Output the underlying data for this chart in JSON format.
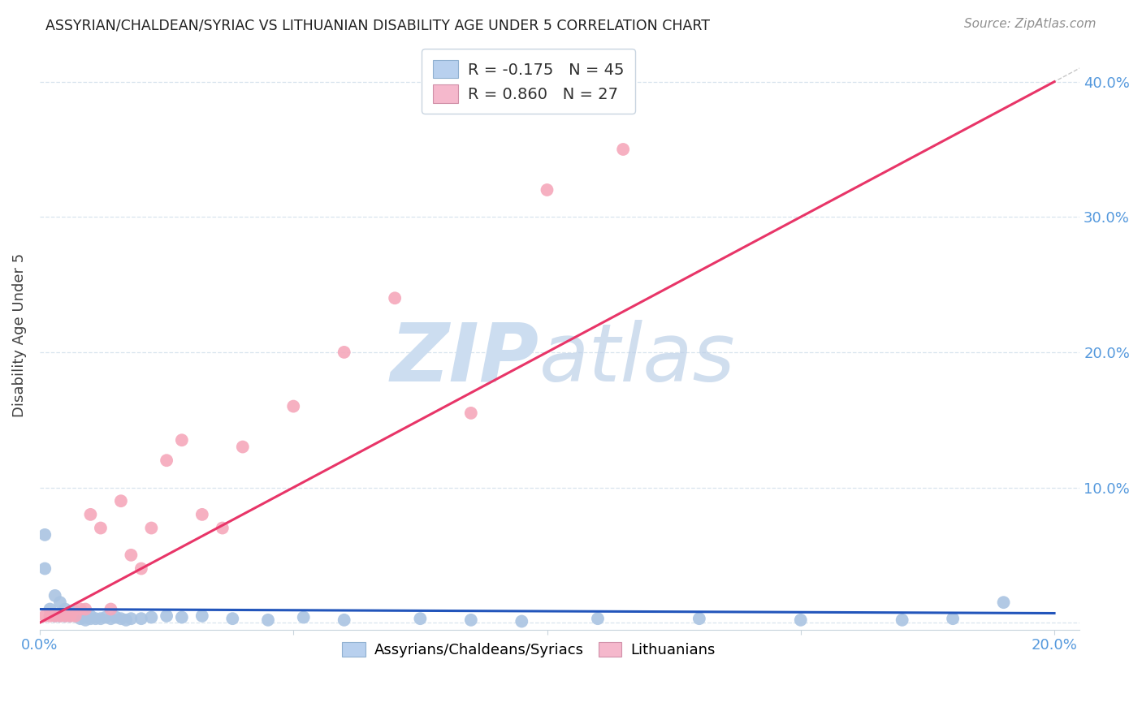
{
  "title": "ASSYRIAN/CHALDEAN/SYRIAC VS LITHUANIAN DISABILITY AGE UNDER 5 CORRELATION CHART",
  "source": "Source: ZipAtlas.com",
  "ylabel": "Disability Age Under 5",
  "xlim": [
    0.0,
    0.205
  ],
  "ylim": [
    -0.005,
    0.43
  ],
  "yticks": [
    0.0,
    0.1,
    0.2,
    0.3,
    0.4
  ],
  "xticks": [
    0.0,
    0.05,
    0.1,
    0.15,
    0.2
  ],
  "background_color": "#ffffff",
  "blue_scatter_color": "#aac4e2",
  "pink_scatter_color": "#f5a8bb",
  "blue_line_color": "#2255bb",
  "pink_line_color": "#e83568",
  "diagonal_color": "#c8c8c8",
  "axis_label_color": "#5599dd",
  "legend_r1": "-0.175",
  "legend_n1": "45",
  "legend_r2": "0.860",
  "legend_n2": "27",
  "blue_patch_color": "#b8d0ee",
  "pink_patch_color": "#f5b8cc",
  "assyrian_x": [
    0.001,
    0.001,
    0.002,
    0.003,
    0.003,
    0.004,
    0.004,
    0.005,
    0.005,
    0.006,
    0.006,
    0.007,
    0.007,
    0.008,
    0.008,
    0.009,
    0.009,
    0.01,
    0.01,
    0.011,
    0.012,
    0.013,
    0.014,
    0.015,
    0.016,
    0.017,
    0.018,
    0.02,
    0.022,
    0.025,
    0.028,
    0.032,
    0.038,
    0.045,
    0.052,
    0.06,
    0.075,
    0.085,
    0.095,
    0.11,
    0.13,
    0.15,
    0.17,
    0.18,
    0.19
  ],
  "assyrian_y": [
    0.04,
    0.065,
    0.01,
    0.005,
    0.02,
    0.005,
    0.015,
    0.005,
    0.01,
    0.005,
    0.008,
    0.005,
    0.008,
    0.003,
    0.006,
    0.002,
    0.004,
    0.003,
    0.005,
    0.003,
    0.003,
    0.004,
    0.003,
    0.004,
    0.003,
    0.002,
    0.003,
    0.003,
    0.004,
    0.005,
    0.004,
    0.005,
    0.003,
    0.002,
    0.004,
    0.002,
    0.003,
    0.002,
    0.001,
    0.003,
    0.003,
    0.002,
    0.002,
    0.003,
    0.015
  ],
  "lithuanian_x": [
    0.001,
    0.002,
    0.003,
    0.004,
    0.005,
    0.006,
    0.007,
    0.008,
    0.009,
    0.01,
    0.012,
    0.014,
    0.016,
    0.018,
    0.02,
    0.022,
    0.025,
    0.028,
    0.032,
    0.036,
    0.04,
    0.05,
    0.06,
    0.07,
    0.085,
    0.1,
    0.115
  ],
  "lithuanian_y": [
    0.005,
    0.005,
    0.005,
    0.005,
    0.005,
    0.005,
    0.005,
    0.01,
    0.01,
    0.08,
    0.07,
    0.01,
    0.09,
    0.05,
    0.04,
    0.07,
    0.12,
    0.135,
    0.08,
    0.07,
    0.13,
    0.16,
    0.2,
    0.24,
    0.155,
    0.32,
    0.35
  ]
}
